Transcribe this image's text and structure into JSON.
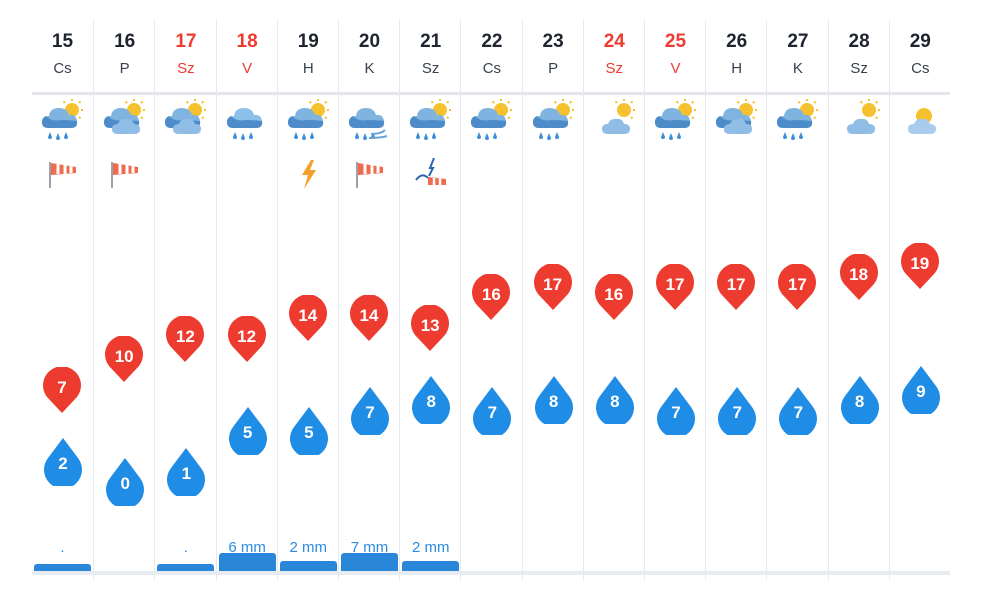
{
  "colors": {
    "max_pin": "#ee3b30",
    "min_drop": "#1f8ce6",
    "weekend_text": "#ee3b30",
    "precip_text": "#2b8be0",
    "rain_bar": "#2a86d8"
  },
  "days": [
    {
      "date": "15",
      "dow": "Cs",
      "weekend": false,
      "icon": "rain-sun-icon",
      "alert": "wind-sock-icon",
      "max": "7",
      "min": "2",
      "max_v": 7,
      "min_v": 2,
      "precip": ".",
      "rain_level": 0.18
    },
    {
      "date": "16",
      "dow": "P",
      "weekend": false,
      "icon": "cloud-sun-icon",
      "alert": "wind-sock-icon",
      "max": "10",
      "min": "0",
      "max_v": 10,
      "min_v": 0,
      "precip": "",
      "rain_level": 0
    },
    {
      "date": "17",
      "dow": "Sz",
      "weekend": true,
      "icon": "cloud-sun-icon",
      "alert": "",
      "max": "12",
      "min": "1",
      "max_v": 12,
      "min_v": 1,
      "precip": ".",
      "rain_level": 0.18
    },
    {
      "date": "18",
      "dow": "V",
      "weekend": true,
      "icon": "rain-icon",
      "alert": "",
      "max": "12",
      "min": "5",
      "max_v": 12,
      "min_v": 5,
      "precip": "6 mm",
      "rain_level": 1
    },
    {
      "date": "19",
      "dow": "H",
      "weekend": false,
      "icon": "rain-sun-icon",
      "alert": "lightning-icon",
      "max": "14",
      "min": "5",
      "max_v": 14,
      "min_v": 5,
      "precip": "2 mm",
      "rain_level": 0.4
    },
    {
      "date": "20",
      "dow": "K",
      "weekend": false,
      "icon": "rain-wind-icon",
      "alert": "wind-sock-icon",
      "max": "14",
      "min": "7",
      "max_v": 14,
      "min_v": 7,
      "precip": "7 mm",
      "rain_level": 1
    },
    {
      "date": "21",
      "dow": "Sz",
      "weekend": false,
      "icon": "rain-sun-icon",
      "alert": "storm-wind-icon",
      "max": "13",
      "min": "8",
      "max_v": 13,
      "min_v": 8,
      "precip": "2 mm",
      "rain_level": 0.4
    },
    {
      "date": "22",
      "dow": "Cs",
      "weekend": false,
      "icon": "rain-sun-icon",
      "alert": "",
      "max": "16",
      "min": "7",
      "max_v": 16,
      "min_v": 7,
      "precip": "",
      "rain_level": 0
    },
    {
      "date": "23",
      "dow": "P",
      "weekend": false,
      "icon": "rain-sun-icon",
      "alert": "",
      "max": "17",
      "min": "8",
      "max_v": 17,
      "min_v": 8,
      "precip": "",
      "rain_level": 0
    },
    {
      "date": "24",
      "dow": "Sz",
      "weekend": true,
      "icon": "partly-cloudy-icon",
      "alert": "",
      "max": "16",
      "min": "8",
      "max_v": 16,
      "min_v": 8,
      "precip": "",
      "rain_level": 0
    },
    {
      "date": "25",
      "dow": "V",
      "weekend": true,
      "icon": "rain-sun-icon",
      "alert": "",
      "max": "17",
      "min": "7",
      "max_v": 17,
      "min_v": 7,
      "precip": "",
      "rain_level": 0
    },
    {
      "date": "26",
      "dow": "H",
      "weekend": false,
      "icon": "cloud-sun-icon",
      "alert": "",
      "max": "17",
      "min": "7",
      "max_v": 17,
      "min_v": 7,
      "precip": "",
      "rain_level": 0
    },
    {
      "date": "27",
      "dow": "K",
      "weekend": false,
      "icon": "rain-sun-icon",
      "alert": "",
      "max": "17",
      "min": "7",
      "max_v": 17,
      "min_v": 7,
      "precip": "",
      "rain_level": 0
    },
    {
      "date": "28",
      "dow": "Sz",
      "weekend": false,
      "icon": "partly-cloudy-icon",
      "alert": "",
      "max": "18",
      "min": "8",
      "max_v": 18,
      "min_v": 8,
      "precip": "",
      "rain_level": 0
    },
    {
      "date": "29",
      "dow": "Cs",
      "weekend": false,
      "icon": "sunny-cloud-icon",
      "alert": "",
      "max": "19",
      "min": "9",
      "max_v": 19,
      "min_v": 9,
      "precip": "",
      "rain_level": 0
    }
  ]
}
